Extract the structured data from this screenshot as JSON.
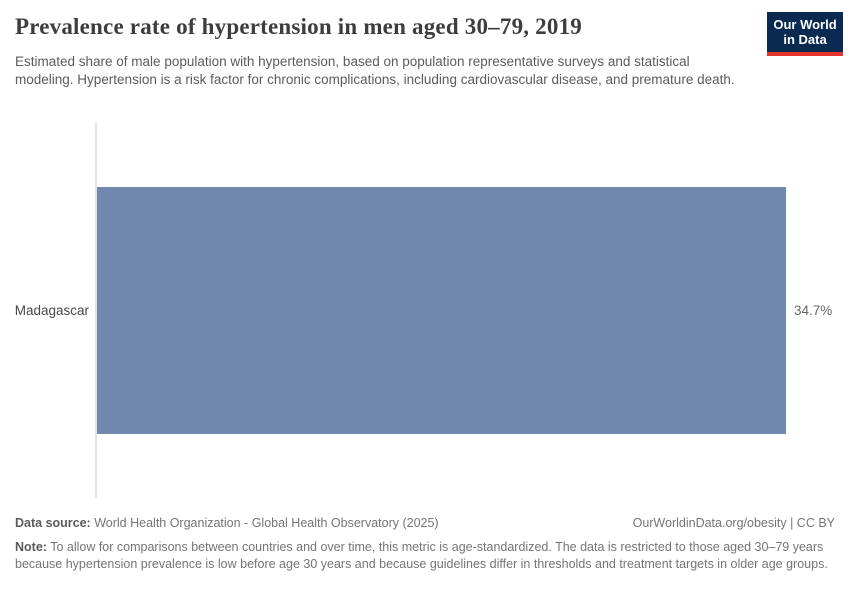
{
  "header": {
    "title": "Prevalence rate of hypertension in men aged 30–79, 2019",
    "subtitle": "Estimated share of male population with hypertension, based on population representative surveys and statistical modeling. Hypertension is a risk factor for chronic complications, including cardiovascular disease, and premature death.",
    "logo": {
      "line1": "Our World",
      "line2": "in Data",
      "bg_color": "#0b2a51",
      "accent_color": "#e5352c"
    }
  },
  "chart_data": {
    "type": "bar",
    "orientation": "horizontal",
    "title": "Prevalence rate of hypertension in men aged 30–79, 2019",
    "categories": [
      "Madagascar"
    ],
    "values": [
      34.7
    ],
    "value_labels": [
      "34.7%"
    ],
    "unit": "%",
    "xlim": [
      0,
      34.7
    ],
    "bar_color": "#7189ae",
    "axis_color": "#e2e2e2",
    "grid": false,
    "legend": false
  },
  "footer": {
    "source_label": "Data source:",
    "source_text": "World Health Organization - Global Health Observatory (2025)",
    "rights_text": "OurWorldinData.org/obesity | CC BY",
    "note_label": "Note:",
    "note_text": "To allow for comparisons between countries and over time, this metric is age-standardized. The data is restricted to those aged 30–79 years because hypertension prevalence is low before age 30 years and because guidelines differ in thresholds and treatment targets in older age groups."
  }
}
